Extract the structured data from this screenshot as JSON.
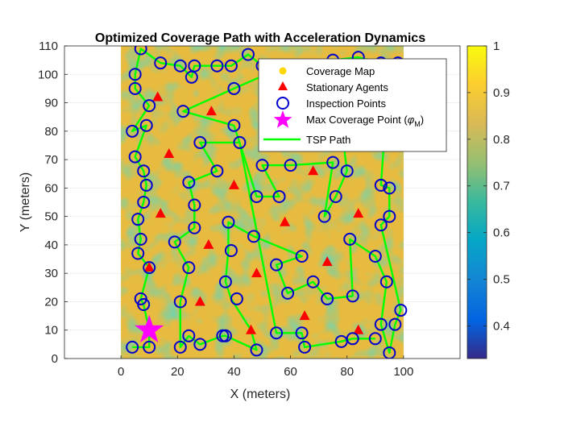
{
  "chart_data": {
    "type": "scatter",
    "title": "Optimized Coverage Path with Acceleration Dynamics",
    "xlabel": "X (meters)",
    "ylabel": "Y (meters)",
    "xlim": [
      -20,
      120
    ],
    "ylim": [
      0,
      110
    ],
    "xticks": [
      "0",
      "20",
      "40",
      "60",
      "80",
      "100"
    ],
    "yticks": [
      "0",
      "10",
      "20",
      "30",
      "40",
      "50",
      "60",
      "70",
      "80",
      "90",
      "100",
      "110"
    ],
    "colorbar": {
      "range": [
        0.33,
        1
      ],
      "ticks": [
        "0.4",
        "0.5",
        "0.6",
        "0.7",
        "0.8",
        "0.9",
        "1"
      ],
      "colormap": "parula"
    },
    "legend": {
      "placement": "top-right",
      "entries": [
        {
          "label": "Coverage Map",
          "marker": "yellow-dot",
          "color": "#FFD700"
        },
        {
          "label": "Stationary Agents",
          "marker": "red-triangle",
          "color": "#FF0000"
        },
        {
          "label": "Inspection Points",
          "marker": "blue-circle",
          "color": "#0000CD"
        },
        {
          "label": "Max Coverage Point (",
          "label_sym": "φ",
          "label_sub": "M",
          "label_end": ")",
          "marker": "magenta-star",
          "color": "#FF00FF"
        },
        {
          "label": "TSP Path",
          "marker": "green-line",
          "color": "#00FF00"
        }
      ]
    },
    "coverage_map": {
      "x_range": [
        0,
        100
      ],
      "y_range": [
        0,
        110
      ]
    },
    "stationary_agents": [
      [
        13,
        92
      ],
      [
        17,
        72
      ],
      [
        14,
        51
      ],
      [
        32,
        87
      ],
      [
        40,
        61
      ],
      [
        58,
        48
      ],
      [
        66,
        98
      ],
      [
        68,
        66
      ],
      [
        84,
        51
      ],
      [
        31,
        40
      ],
      [
        48,
        30
      ],
      [
        28,
        20
      ],
      [
        73,
        34
      ],
      [
        65,
        15
      ],
      [
        46,
        10
      ],
      [
        84,
        10
      ],
      [
        10,
        32
      ]
    ],
    "inspection_points": [
      [
        7,
        109
      ],
      [
        5,
        100
      ],
      [
        5,
        95
      ],
      [
        10,
        89
      ],
      [
        4,
        80
      ],
      [
        9,
        82
      ],
      [
        5,
        71
      ],
      [
        8,
        66
      ],
      [
        9,
        61
      ],
      [
        8,
        55
      ],
      [
        6,
        49
      ],
      [
        7,
        42
      ],
      [
        6,
        37
      ],
      [
        10,
        32
      ],
      [
        7,
        21
      ],
      [
        8,
        19
      ],
      [
        4,
        4
      ],
      [
        10,
        4
      ],
      [
        14,
        104
      ],
      [
        21,
        103
      ],
      [
        25,
        99
      ],
      [
        26,
        103
      ],
      [
        34,
        103
      ],
      [
        39,
        103
      ],
      [
        45,
        107
      ],
      [
        50,
        103
      ],
      [
        56,
        102
      ],
      [
        75,
        105
      ],
      [
        84,
        106
      ],
      [
        92,
        104
      ],
      [
        98,
        104
      ],
      [
        22,
        87
      ],
      [
        40,
        95
      ],
      [
        40,
        82
      ],
      [
        42,
        76
      ],
      [
        28,
        76
      ],
      [
        34,
        66
      ],
      [
        24,
        62
      ],
      [
        26,
        54
      ],
      [
        26,
        46
      ],
      [
        19,
        41
      ],
      [
        24,
        32
      ],
      [
        21,
        20
      ],
      [
        21,
        4
      ],
      [
        24,
        8
      ],
      [
        28,
        5
      ],
      [
        36,
        8
      ],
      [
        37,
        8
      ],
      [
        48,
        3
      ],
      [
        38,
        48
      ],
      [
        39,
        38
      ],
      [
        37,
        27
      ],
      [
        41,
        21
      ],
      [
        47,
        43
      ],
      [
        48,
        57
      ],
      [
        56,
        57
      ],
      [
        60,
        68
      ],
      [
        50,
        68
      ],
      [
        55,
        33
      ],
      [
        64,
        36
      ],
      [
        55,
        9
      ],
      [
        64,
        9
      ],
      [
        65,
        4
      ],
      [
        59,
        23
      ],
      [
        68,
        27
      ],
      [
        73,
        21
      ],
      [
        76,
        57
      ],
      [
        75,
        69
      ],
      [
        72,
        50
      ],
      [
        78,
        6
      ],
      [
        82,
        7
      ],
      [
        80,
        66
      ],
      [
        81,
        42
      ],
      [
        82,
        22
      ],
      [
        90,
        7
      ],
      [
        92,
        61
      ],
      [
        95,
        60
      ],
      [
        95,
        50
      ],
      [
        92,
        47
      ],
      [
        90,
        36
      ],
      [
        94,
        27
      ],
      [
        92,
        12
      ],
      [
        95,
        2
      ],
      [
        97,
        12
      ],
      [
        99,
        17
      ],
      [
        93,
        75
      ]
    ],
    "max_coverage_point": [
      10,
      10
    ],
    "tsp_path": [
      [
        4,
        4
      ],
      [
        10,
        4
      ],
      [
        10,
        10
      ],
      [
        8,
        19
      ],
      [
        7,
        21
      ],
      [
        10,
        32
      ],
      [
        6,
        37
      ],
      [
        7,
        42
      ],
      [
        6,
        49
      ],
      [
        8,
        55
      ],
      [
        9,
        61
      ],
      [
        8,
        66
      ],
      [
        5,
        71
      ],
      [
        9,
        82
      ],
      [
        4,
        80
      ],
      [
        10,
        89
      ],
      [
        5,
        95
      ],
      [
        5,
        100
      ],
      [
        7,
        109
      ],
      [
        14,
        104
      ],
      [
        21,
        103
      ],
      [
        25,
        99
      ],
      [
        26,
        103
      ],
      [
        34,
        103
      ],
      [
        39,
        103
      ],
      [
        45,
        107
      ],
      [
        50,
        103
      ],
      [
        56,
        102
      ],
      [
        40,
        95
      ],
      [
        22,
        87
      ],
      [
        40,
        82
      ],
      [
        42,
        76
      ],
      [
        28,
        76
      ],
      [
        34,
        66
      ],
      [
        24,
        62
      ],
      [
        26,
        54
      ],
      [
        26,
        46
      ],
      [
        19,
        41
      ],
      [
        24,
        32
      ],
      [
        21,
        20
      ],
      [
        21,
        4
      ],
      [
        24,
        8
      ],
      [
        28,
        5
      ],
      [
        36,
        8
      ],
      [
        37,
        8
      ],
      [
        48,
        3
      ],
      [
        46,
        10
      ],
      [
        39,
        21
      ],
      [
        37,
        27
      ],
      [
        38,
        38
      ],
      [
        38,
        48
      ],
      [
        47,
        43
      ],
      [
        64,
        36
      ],
      [
        55,
        33
      ],
      [
        59,
        23
      ],
      [
        68,
        27
      ],
      [
        73,
        21
      ],
      [
        82,
        22
      ],
      [
        81,
        42
      ],
      [
        90,
        36
      ],
      [
        94,
        27
      ],
      [
        92,
        12
      ],
      [
        95,
        2
      ],
      [
        97,
        12
      ],
      [
        99,
        17
      ],
      [
        92,
        47
      ],
      [
        95,
        50
      ],
      [
        95,
        60
      ],
      [
        92,
        61
      ],
      [
        93,
        75
      ],
      [
        92,
        104
      ],
      [
        84,
        106
      ],
      [
        75,
        105
      ],
      [
        80,
        66
      ],
      [
        76,
        57
      ],
      [
        72,
        50
      ],
      [
        75,
        69
      ],
      [
        60,
        68
      ],
      [
        50,
        68
      ],
      [
        56,
        57
      ],
      [
        48,
        57
      ],
      [
        42,
        76
      ],
      [
        55,
        9
      ],
      [
        64,
        9
      ],
      [
        65,
        4
      ],
      [
        78,
        6
      ],
      [
        82,
        7
      ],
      [
        90,
        7
      ]
    ]
  }
}
